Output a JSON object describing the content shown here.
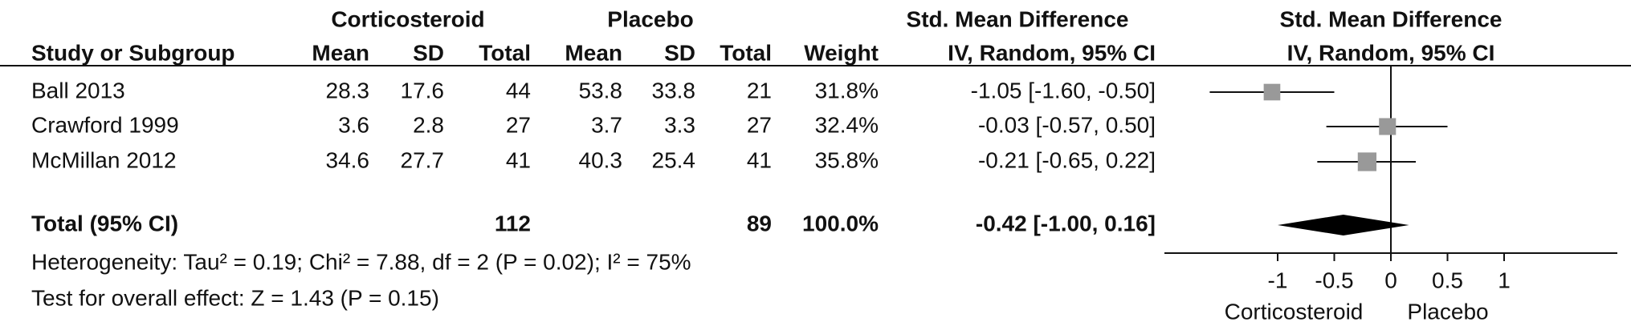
{
  "chart_data": {
    "type": "forest",
    "header": {
      "group1": "Corticosteroid",
      "group2": "Placebo",
      "effect": "Std. Mean Difference",
      "effect_plot": "Std. Mean Difference",
      "study": "Study or Subgroup",
      "columns": [
        "Mean",
        "SD",
        "Total",
        "Mean",
        "SD",
        "Total",
        "Weight"
      ],
      "method": "IV, Random, 95% CI",
      "method_plot": "IV, Random, 95% CI"
    },
    "studies": [
      {
        "name": "Ball 2013",
        "cells": [
          "28.3",
          "17.6",
          "44",
          "53.8",
          "33.8",
          "21"
        ],
        "weight": {
          "value": 31.8,
          "label": "31.8%"
        },
        "estimate": -1.05,
        "lower": -1.6,
        "upper": -0.5,
        "label": "-1.05 [-1.60, -0.50]"
      },
      {
        "name": "Crawford 1999",
        "cells": [
          "3.6",
          "2.8",
          "27",
          "3.7",
          "3.3",
          "27"
        ],
        "weight": {
          "value": 32.4,
          "label": "32.4%"
        },
        "estimate": -0.03,
        "lower": -0.57,
        "upper": 0.5,
        "label": "-0.03 [-0.57, 0.50]"
      },
      {
        "name": "McMillan 2012",
        "cells": [
          "34.6",
          "27.7",
          "41",
          "40.3",
          "25.4",
          "41"
        ],
        "weight": {
          "value": 35.8,
          "label": "35.8%"
        },
        "estimate": -0.21,
        "lower": -0.65,
        "upper": 0.22,
        "label": "-0.21 [-0.65, 0.22]"
      }
    ],
    "total": {
      "name": "Total (95% CI)",
      "total1": "112",
      "total2": "89",
      "weight": "100.0%",
      "estimate": -0.42,
      "lower": -1.0,
      "upper": 0.16,
      "label": "-0.42 [-1.00, 0.16]"
    },
    "heterogeneity": "Heterogeneity: Tau² = 0.19; Chi² = 7.88, df = 2 (P = 0.02); I² = 75%",
    "overall_effect": "Test for overall effect: Z = 1.43 (P = 0.15)",
    "xlim": [
      -2,
      2
    ],
    "xticks": [
      -1,
      -0.5,
      0,
      0.5,
      1
    ],
    "favours_left": "Corticosteroid",
    "favours_right": "Placebo",
    "square_color": "#999999",
    "diamond_color": "#000000"
  }
}
